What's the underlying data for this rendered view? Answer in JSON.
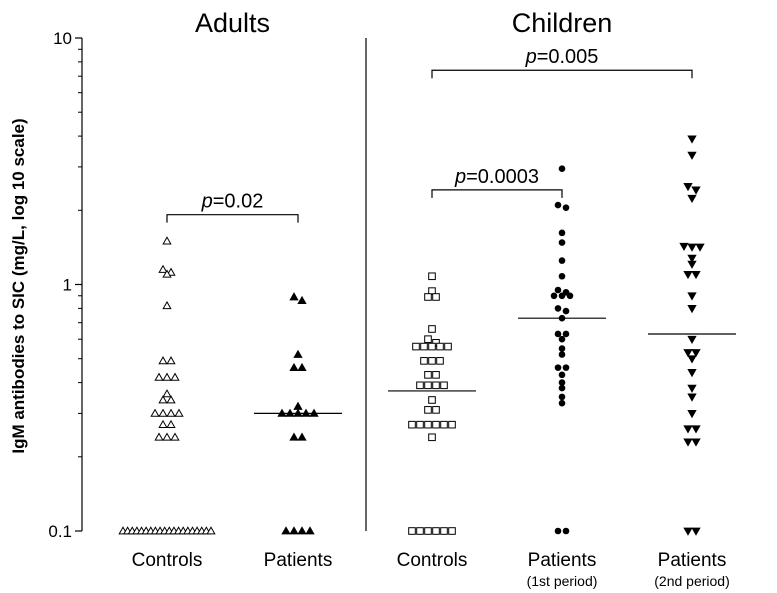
{
  "chart_data": {
    "type": "scatter",
    "ylabel": "IgM antibodies to SIC (mg/L, log 10 scale)",
    "yscale": "log10",
    "ylim": [
      0.1,
      10
    ],
    "yticks": [
      {
        "value": 0.1,
        "label": "0.1"
      },
      {
        "value": 1,
        "label": "1"
      },
      {
        "value": 10,
        "label": "10"
      }
    ],
    "panels": [
      {
        "title": "Adults",
        "group_indices": [
          0,
          1
        ]
      },
      {
        "title": "Children",
        "group_indices": [
          2,
          3,
          4
        ]
      }
    ],
    "groups": [
      {
        "label": "Controls",
        "sublabel": "",
        "marker": "triangle-up-open",
        "median": null,
        "values": [
          1.5,
          1.15,
          1.12,
          1.1,
          0.82,
          0.49,
          0.49,
          0.42,
          0.42,
          0.42,
          0.36,
          0.34,
          0.34,
          0.3,
          0.3,
          0.3,
          0.3,
          0.27,
          0.27,
          0.24,
          0.24,
          0.24,
          0.1,
          0.1,
          0.1,
          0.1,
          0.1,
          0.1,
          0.1,
          0.1,
          0.1,
          0.1,
          0.1,
          0.1,
          0.1,
          0.1,
          0.1,
          0.1,
          0.1,
          0.1,
          0.1,
          0.1
        ]
      },
      {
        "label": "Patients",
        "sublabel": "",
        "marker": "triangle-up-filled",
        "median": 0.3,
        "values": [
          0.89,
          0.86,
          0.52,
          0.46,
          0.46,
          0.32,
          0.3,
          0.3,
          0.3,
          0.3,
          0.3,
          0.24,
          0.24,
          0.1,
          0.1,
          0.1,
          0.1
        ]
      },
      {
        "label": "Controls",
        "sublabel": "",
        "marker": "square-open",
        "median": 0.37,
        "values": [
          1.08,
          0.94,
          0.89,
          0.89,
          0.66,
          0.6,
          0.58,
          0.56,
          0.56,
          0.56,
          0.56,
          0.56,
          0.49,
          0.49,
          0.49,
          0.43,
          0.43,
          0.39,
          0.39,
          0.39,
          0.39,
          0.34,
          0.31,
          0.31,
          0.27,
          0.27,
          0.27,
          0.27,
          0.27,
          0.27,
          0.24,
          0.1,
          0.1,
          0.1,
          0.1,
          0.1,
          0.1
        ]
      },
      {
        "label": "Patients",
        "sublabel": "(1st period)",
        "marker": "circle-filled",
        "median": 0.73,
        "values": [
          2.95,
          2.1,
          2.05,
          1.62,
          1.48,
          1.25,
          1.08,
          0.95,
          0.93,
          0.9,
          0.9,
          0.9,
          0.8,
          0.78,
          0.73,
          0.63,
          0.63,
          0.6,
          0.55,
          0.52,
          0.46,
          0.46,
          0.43,
          0.4,
          0.38,
          0.35,
          0.33,
          0.1,
          0.1
        ]
      },
      {
        "label": "Patients",
        "sublabel": "(2nd period)",
        "marker": "triangle-down-filled",
        "median": 0.63,
        "values": [
          3.9,
          3.35,
          2.5,
          2.42,
          2.24,
          1.43,
          1.42,
          1.42,
          1.28,
          1.21,
          1.1,
          1.1,
          0.9,
          0.8,
          0.6,
          0.53,
          0.53,
          0.5,
          0.44,
          0.38,
          0.35,
          0.3,
          0.26,
          0.26,
          0.23,
          0.23,
          0.1,
          0.1
        ]
      }
    ],
    "comparisons": [
      {
        "from": 0,
        "to": 1,
        "label_prefix": "p",
        "label_value": "=0.02",
        "y": 1.92
      },
      {
        "from": 2,
        "to": 3,
        "label_prefix": "p",
        "label_value": "=0.0003",
        "y": 2.42
      },
      {
        "from": 2,
        "to": 4,
        "label_prefix": "p",
        "label_value": "=0.005",
        "y": 7.4
      }
    ]
  }
}
